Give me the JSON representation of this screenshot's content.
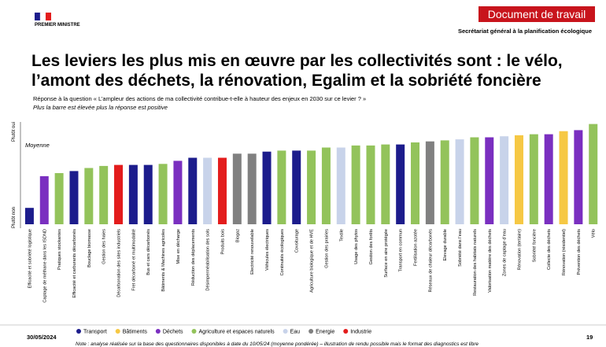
{
  "header": {
    "logo": "PREMIER MINISTRE",
    "badge": "Document de travail",
    "org": "Secrétariat général à la planification écologique"
  },
  "chart_data": {
    "type": "bar",
    "title": [
      "Les leviers les plus mis en œuvre par les collectivités sont : le vélo,",
      "l’amont des déchets, la rénovation, Egalim et la sobriété foncière"
    ],
    "subtitle": "Réponse à la question « L’ampleur des actions de ma collectivité contribue-t-elle à hauteur des enjeux en 2030 sur ce levier ? »",
    "subtitle_note": "Plus la barre est élevée plus la réponse est positive",
    "axis_top": "Plutôt oui",
    "axis_bottom": "Plutôt non",
    "annotation": "Moyenne",
    "categories": [
      "Efficacité et sobriété logistique",
      "Captage de méthane dans les ISDND",
      "Pratiques stockantes",
      "Efficacité et carburants décarbonés",
      "Bouclage biomasse",
      "Gestion des haies",
      "Décarbonation des sites industriels",
      "Fret décarboné et multimodalité",
      "Bus et cars décarbonés",
      "Bâtiments & Machines agricoles",
      "Mise en décharge",
      "Réduction des déplacements",
      "Désimperméabilisation des sols",
      "Produits bois",
      "Biogaz",
      "Electricité renouvelable",
      "Véhicules électriques",
      "Continuités écologiques",
      "Covoiturage",
      "Agriculture biologique et de HVE",
      "Gestion des prairies",
      "Textile",
      "Usage des phytos",
      "Gestion des forêts",
      "Surface en aire protégée",
      "Transport en commun",
      "Fertilisation azotée",
      "Réseaux de chaleur décarbonés",
      "Elevage durable",
      "Sobriété dans l’eau",
      "Restauration des habitats naturels",
      "Valorisation matière des déchets",
      "Zones de captage d’eau",
      "Rénovation (tertiaire)",
      "Sobriété foncière",
      "Collecte des déchets",
      "Rénovation (résidentiel)",
      "Prévention des déchets",
      "Vélo"
    ],
    "values": [
      16,
      47,
      50,
      52,
      55,
      57,
      58,
      58,
      58,
      59,
      62,
      65,
      65,
      65,
      69,
      69,
      71,
      72,
      72,
      72,
      75,
      75,
      77,
      77,
      78,
      78,
      80,
      81,
      82,
      83,
      85,
      85,
      86,
      87,
      88,
      88,
      91,
      92,
      98
    ],
    "colors": [
      "#1c1c8c",
      "#7a2fc0",
      "#93c35b",
      "#1c1c8c",
      "#93c35b",
      "#93c35b",
      "#e31c1c",
      "#1c1c8c",
      "#1c1c8c",
      "#93c35b",
      "#7a2fc0",
      "#1c1c8c",
      "#c8d3ea",
      "#e31c1c",
      "#808080",
      "#808080",
      "#1c1c8c",
      "#93c35b",
      "#1c1c8c",
      "#93c35b",
      "#93c35b",
      "#c8d3ea",
      "#93c35b",
      "#93c35b",
      "#93c35b",
      "#1c1c8c",
      "#93c35b",
      "#808080",
      "#93c35b",
      "#c8d3ea",
      "#93c35b",
      "#7a2fc0",
      "#c8d3ea",
      "#f6c844",
      "#93c35b",
      "#7a2fc0",
      "#f6c844",
      "#7a2fc0",
      "#93c35b"
    ],
    "ylim": [
      0,
      100
    ],
    "legend": [
      {
        "name": "Transport",
        "color": "#1c1c8c"
      },
      {
        "name": "Bâtiments",
        "color": "#f6c844"
      },
      {
        "name": "Déchets",
        "color": "#7a2fc0"
      },
      {
        "name": "Agriculture et espaces naturels",
        "color": "#93c35b"
      },
      {
        "name": "Eau",
        "color": "#c8d3ea"
      },
      {
        "name": "Energie",
        "color": "#808080"
      },
      {
        "name": "Industrie",
        "color": "#e31c1c"
      }
    ]
  },
  "footer": {
    "date": "30/05/2024",
    "page": "19",
    "note": "Note : analyse réalisée sur la base des questionnaires disponibles à date du 10/05/24 (moyenne pondérée) – illustration de rendu possible mais le format des diagnostics est libre"
  }
}
